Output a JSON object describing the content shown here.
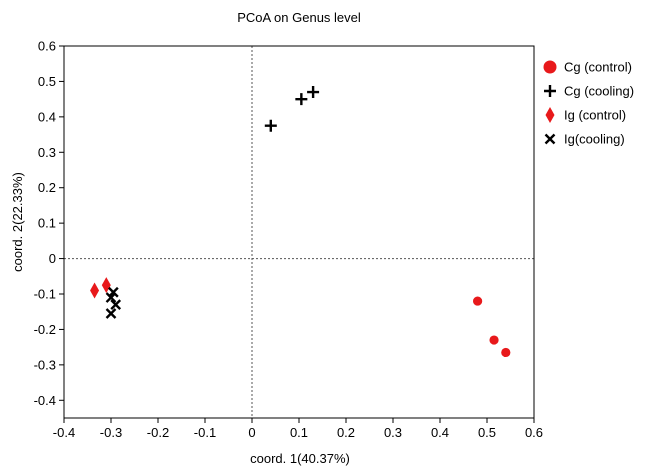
{
  "chart_data": {
    "type": "scatter",
    "title": "PCoA on Genus level",
    "xlabel": "coord. 1(40.37%)",
    "ylabel": "coord. 2(22.33%)",
    "xlim": [
      -0.4,
      0.6
    ],
    "ylim": [
      -0.45,
      0.6
    ],
    "xticks": [
      "-0.4",
      "-0.3",
      "-0.2",
      "-0.1",
      "0",
      "0.1",
      "0.2",
      "0.3",
      "0.4",
      "0.5",
      "0.6"
    ],
    "yticks": [
      "-0.4",
      "-0.3",
      "-0.2",
      "-0.1",
      "0",
      "0.1",
      "0.2",
      "0.3",
      "0.4",
      "0.5",
      "0.6"
    ],
    "reference_lines": {
      "x": 0,
      "y": 0,
      "style": "dotted"
    },
    "grid": false,
    "legend_position": "right",
    "series": [
      {
        "name": "Cg (control)",
        "marker": "circle",
        "color": "#e8191b",
        "points": [
          [
            0.48,
            -0.12
          ],
          [
            0.515,
            -0.23
          ],
          [
            0.54,
            -0.265
          ]
        ]
      },
      {
        "name": "Cg (cooling)",
        "marker": "plus",
        "color": "#000000",
        "points": [
          [
            0.04,
            0.375
          ],
          [
            0.105,
            0.45
          ],
          [
            0.13,
            0.47
          ]
        ]
      },
      {
        "name": "Ig (control)",
        "marker": "diamond",
        "color": "#e8191b",
        "points": [
          [
            -0.335,
            -0.09
          ],
          [
            -0.31,
            -0.075
          ]
        ]
      },
      {
        "name": "Ig(cooling)",
        "marker": "cross",
        "color": "#000000",
        "points": [
          [
            -0.295,
            -0.095
          ],
          [
            -0.29,
            -0.13
          ],
          [
            -0.3,
            -0.11
          ],
          [
            -0.3,
            -0.155
          ]
        ]
      }
    ]
  }
}
